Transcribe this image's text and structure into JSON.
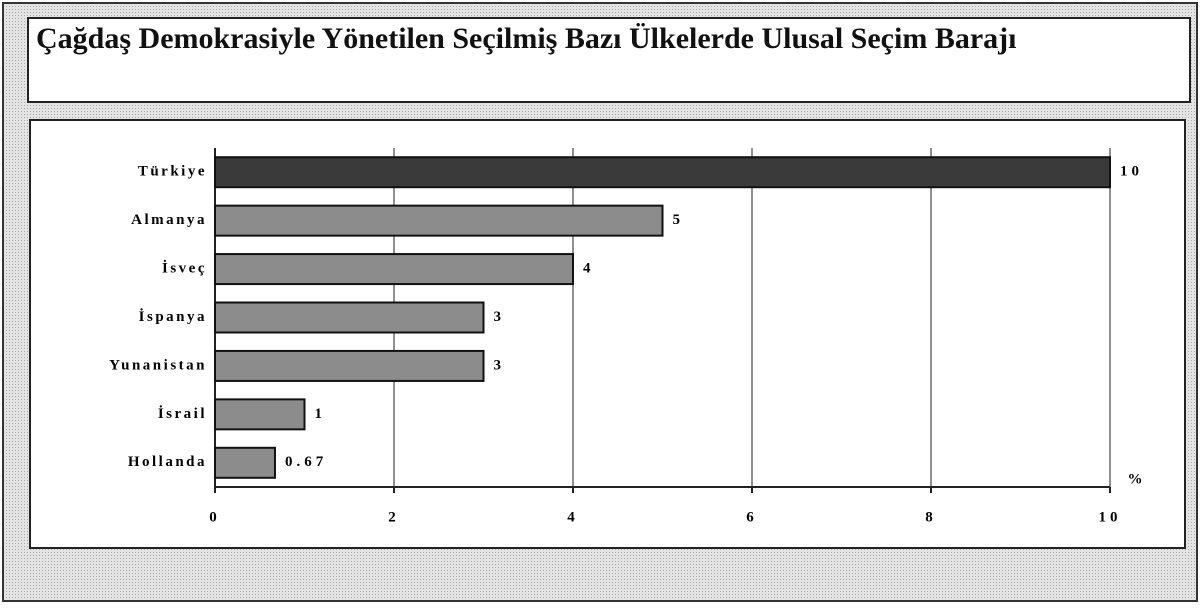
{
  "chart_data": {
    "type": "hbar",
    "title": "Çağdaş Demokrasiyle Yönetilen Seçilmiş Bazı Ülkelerde Ulusal Seçim Barajı",
    "categories": [
      "Türkiye",
      "Almanya",
      "İsveç",
      "İspanya",
      "Yunanistan",
      "İsrail",
      "Hollanda"
    ],
    "values": [
      10,
      5,
      4,
      3,
      3,
      1,
      0.67
    ],
    "colors": [
      "#3a3a3a",
      "#8c8c8c",
      "#8c8c8c",
      "#8c8c8c",
      "#8c8c8c",
      "#8c8c8c",
      "#8c8c8c"
    ],
    "xlim": [
      0,
      10
    ],
    "xticks": [
      0,
      2,
      4,
      6,
      8,
      10
    ],
    "x_label": "%",
    "grid": true
  }
}
